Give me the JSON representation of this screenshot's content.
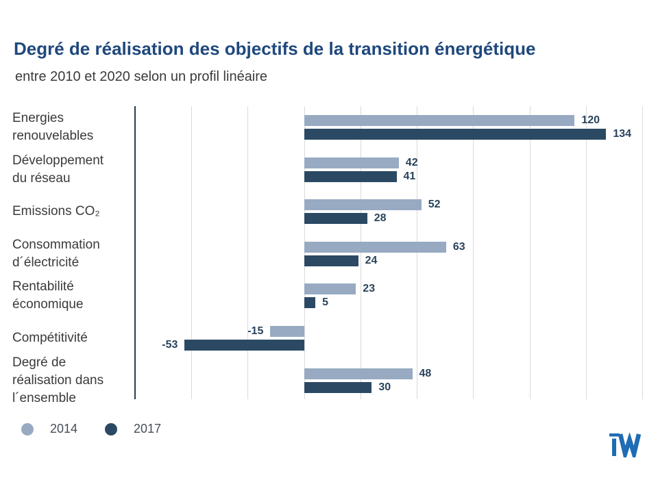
{
  "header": {
    "title": "Degré de réalisation des objectifs de la transition énergétique",
    "subtitle": "entre 2010 et 2020 selon un profil linéaire"
  },
  "colors": {
    "title_blue": "#1F497D",
    "series_2014": "#97AAC1",
    "series_2017": "#2C4963",
    "value_label": "#29435C",
    "gridline": "#DADADA",
    "axis_line": "#2A3A52",
    "logo_blue": "#1E6CB3"
  },
  "logo": {
    "name": "iw-logo",
    "text": "iW"
  },
  "chart_data": {
    "type": "bar",
    "orientation": "horizontal",
    "title": "Degré de réalisation des objectifs de la transition énergétique",
    "subtitle": "entre 2010 et 2020 selon un profil linéaire",
    "categories": [
      "Energies\nrenouvelables",
      "Développement\ndu réseau",
      "Emissions CO₂",
      "Consommation\nd´électricité",
      "Rentabilité\néconomique",
      "Compétitivité",
      "Degré de\nréalisation dans\nl´ensemble"
    ],
    "series": [
      {
        "name": "2014",
        "color": "#97AAC1",
        "values": [
          120,
          42,
          52,
          63,
          23,
          -15,
          48
        ]
      },
      {
        "name": "2017",
        "color": "#2C4963",
        "values": [
          134,
          41,
          28,
          24,
          5,
          -53,
          30
        ]
      }
    ],
    "xlim": [
      -75,
      150
    ],
    "grid_step": 25,
    "grid": true,
    "xlabel": "",
    "ylabel": "",
    "value_labels": true,
    "legend_position": "bottom-left"
  }
}
